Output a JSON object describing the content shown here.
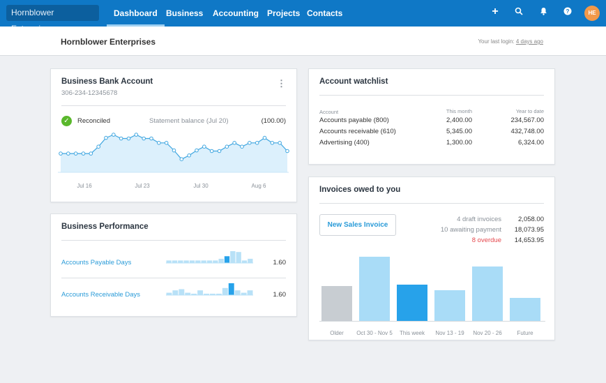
{
  "nav": {
    "org": "Hornblower Enterprises",
    "tabs": [
      "Dashboard",
      "Business",
      "Accounting",
      "Projects",
      "Contacts"
    ],
    "active": "Dashboard",
    "icons": [
      "plus-icon",
      "search-icon",
      "bell-icon",
      "help-icon"
    ],
    "avatar": "HE"
  },
  "subheader": {
    "title": "Hornblower Enterprises",
    "last_login_label": "Your last login:",
    "last_login_value": "4 days ago"
  },
  "bank": {
    "title": "Business Bank Account",
    "account": "306-234-12345678",
    "status": "Reconciled",
    "statement_label": "Statement balance (Jul 20)",
    "statement_value": "(100.00)",
    "chart_data": {
      "type": "area",
      "x_ticks": [
        "Jul 16",
        "Jul 23",
        "Jul 30",
        "Aug 6"
      ],
      "values": [
        21,
        21,
        21,
        21,
        21,
        32,
        46,
        51,
        45,
        45,
        51,
        45,
        45,
        38,
        38,
        26,
        12,
        18,
        26,
        32,
        25,
        25,
        32,
        38,
        32,
        38,
        38,
        46,
        38,
        38,
        25
      ],
      "color": "#3fa6e0"
    }
  },
  "performance": {
    "title": "Business Performance",
    "rows": [
      {
        "label": "Accounts Payable Days",
        "value": "1.60",
        "bars": [
          3,
          3,
          3,
          3,
          3,
          3,
          3,
          3,
          3,
          5,
          8,
          14,
          13,
          3,
          5
        ],
        "highlight": 10
      },
      {
        "label": "Accounts Receivable Days",
        "value": "1.60",
        "bars": [
          2,
          4,
          5,
          2,
          1,
          4,
          1,
          1,
          1,
          6,
          10,
          4,
          2,
          4
        ],
        "highlight": 10
      }
    ]
  },
  "watchlist": {
    "title": "Account watchlist",
    "columns": [
      "Account",
      "This month",
      "Year to date"
    ],
    "rows": [
      [
        "Accounts payable (800)",
        "2,400.00",
        "234,567.00"
      ],
      [
        "Accounts receivable (610)",
        "5,345.00",
        "432,748.00"
      ],
      [
        "Advertising (400)",
        "1,300.00",
        "6,324.00"
      ]
    ]
  },
  "invoices": {
    "title": "Invoices owed to you",
    "new_button": "New Sales Invoice",
    "summary": [
      {
        "label": "4 draft invoices",
        "value": "2,058.00",
        "overdue": false
      },
      {
        "label": "10 awaiting payment",
        "value": "18,073.95",
        "overdue": false
      },
      {
        "label": "8 overdue",
        "value": "14,653.95",
        "overdue": true
      }
    ],
    "chart_data": {
      "type": "bar",
      "categories": [
        "Older",
        "Oct 30 - Nov 5",
        "This week",
        "Nov 13 - 19",
        "Nov 20 - 26",
        "Future"
      ],
      "values": [
        50,
        92,
        52,
        44,
        78,
        33
      ],
      "colors": [
        "#c8cdd2",
        "#a9dcf7",
        "#27a2ea",
        "#a9dcf7",
        "#a9dcf7",
        "#a9dcf7"
      ]
    }
  },
  "colors": {
    "nav": "#0f78c6",
    "accent": "#2a9bd8",
    "overdue": "#e5484d",
    "reconciled": "#5ab82c"
  }
}
